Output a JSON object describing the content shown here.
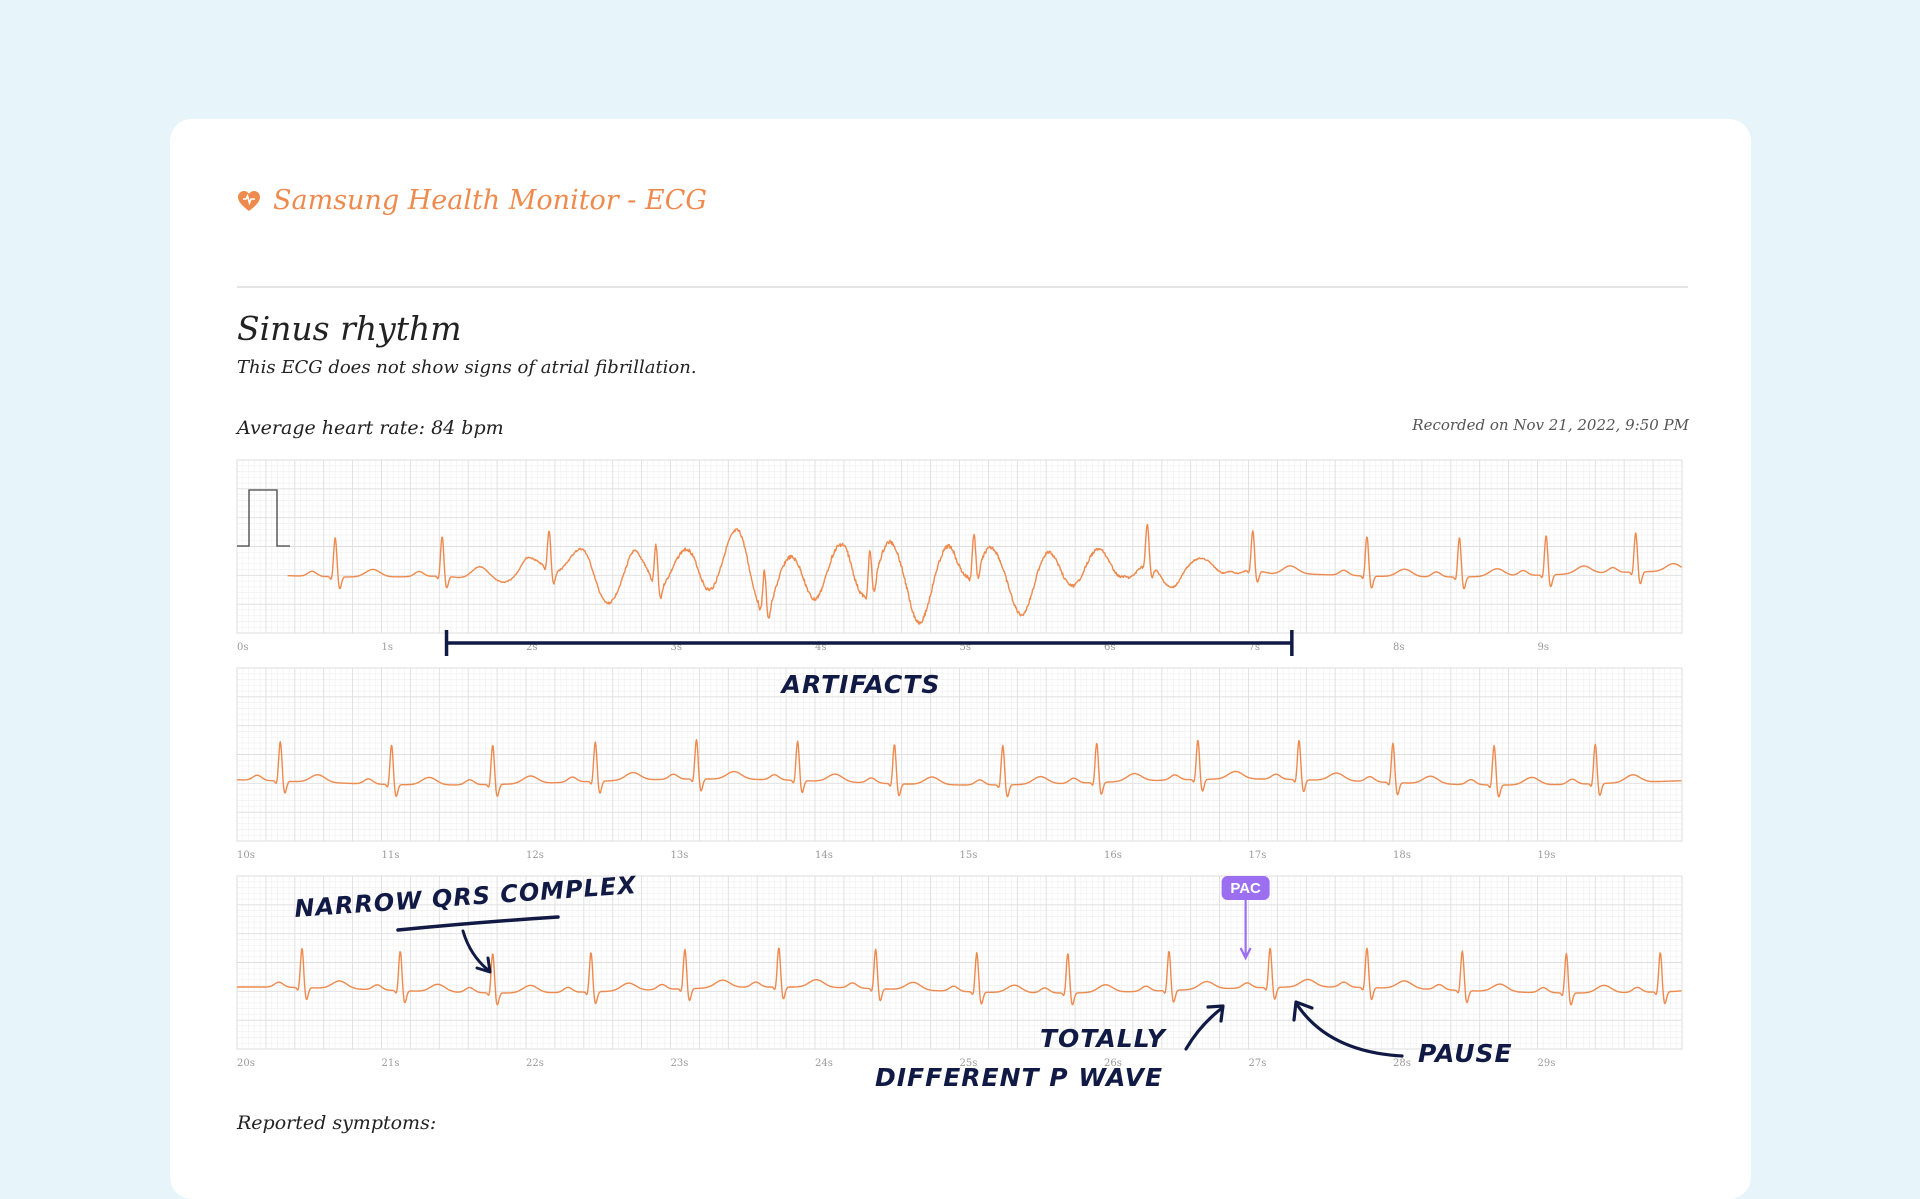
{
  "app": {
    "title": "Samsung Health Monitor - ECG",
    "accent_color": "#ee8a4d",
    "icon": "heart-icon"
  },
  "result": {
    "title": "Sinus rhythm",
    "description": "This ECG does not show signs of atrial fibrillation."
  },
  "summary": {
    "heart_rate_label": "Average heart rate:",
    "heart_rate_value": "84 bpm",
    "recorded": "Recorded on Nov 21, 2022, 9:50 PM"
  },
  "symptoms_label": "Reported symptoms:",
  "chart_data": {
    "type": "line",
    "title": "",
    "xlabel": "",
    "ylabel": "",
    "unit": "s",
    "seconds_per_strip": 10,
    "grid": true,
    "line_color": "#ee8a4d",
    "strips": [
      {
        "tick_labels": [
          "0s",
          "1s",
          "2s",
          "3s",
          "4s",
          "5s",
          "6s",
          "7s",
          "8s",
          "9s"
        ],
        "calibration_pulse": true,
        "beats": [
          0.68,
          1.42,
          2.16,
          2.9,
          3.65,
          4.38,
          5.1,
          6.3,
          7.03,
          7.82,
          8.46,
          9.06,
          9.68
        ],
        "artifact_range": [
          1.45,
          7.3
        ]
      },
      {
        "tick_labels": [
          "10s",
          "11s",
          "12s",
          "13s",
          "14s",
          "15s",
          "16s",
          "17s",
          "18s",
          "19s"
        ],
        "calibration_pulse": false,
        "beats": [
          10.3,
          11.07,
          11.77,
          12.48,
          13.18,
          13.88,
          14.55,
          15.3,
          15.95,
          16.65,
          17.35,
          18.0,
          18.7,
          19.4
        ],
        "artifact_range": null
      },
      {
        "tick_labels": [
          "20s",
          "21s",
          "22s",
          "23s",
          "24s",
          "25s",
          "26s",
          "27s",
          "28s",
          "29s"
        ],
        "calibration_pulse": false,
        "beats": [
          20.45,
          21.13,
          21.77,
          22.45,
          23.1,
          23.75,
          24.42,
          25.12,
          25.75,
          26.45,
          27.15,
          27.82,
          28.48,
          29.2,
          29.85
        ],
        "pac_at": 26.98,
        "artifact_range": null
      }
    ],
    "annotations": [
      {
        "label": "ARTIFACTS"
      },
      {
        "label": "NARROW QRS COMPLEX"
      },
      {
        "label": "PAC"
      },
      {
        "label": "TOTALLY"
      },
      {
        "label": "DIFFERENT P WAVE"
      },
      {
        "label": "PAUSE"
      }
    ],
    "annotation_color": "#101a44",
    "pac_color": "#9b6ff0"
  }
}
